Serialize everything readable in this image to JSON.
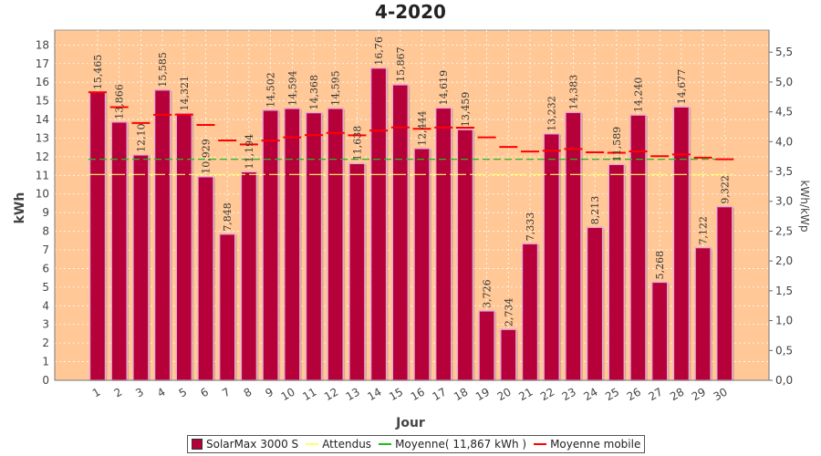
{
  "chart_data": {
    "type": "bar",
    "title": "4-2020",
    "xlabel": "Jour",
    "ylabel": "kWh",
    "y2label": "kWh/kWp",
    "categories": [
      "1",
      "2",
      "3",
      "4",
      "5",
      "6",
      "7",
      "8",
      "9",
      "10",
      "11",
      "12",
      "13",
      "14",
      "15",
      "16",
      "17",
      "18",
      "19",
      "20",
      "21",
      "22",
      "23",
      "24",
      "25",
      "26",
      "27",
      "28",
      "29",
      "30"
    ],
    "ylim": [
      0,
      18.8
    ],
    "yticks": [
      0,
      1,
      2,
      3,
      4,
      5,
      6,
      7,
      8,
      9,
      10,
      11,
      12,
      13,
      14,
      15,
      16,
      17,
      18
    ],
    "y2lim": [
      0,
      5.87
    ],
    "y2ticks": [
      "0,0",
      "0,5",
      "1,0",
      "1,5",
      "2,0",
      "2,5",
      "3,0",
      "3,5",
      "4,0",
      "4,5",
      "5,0",
      "5,5"
    ],
    "grid": true,
    "series": [
      {
        "name": "SolarMax 3000 S",
        "kind": "bar",
        "color": "#b5003a",
        "values": [
          15.465,
          13.866,
          12.1,
          15.585,
          14.321,
          10.929,
          7.848,
          11.194,
          14.502,
          14.594,
          14.368,
          14.595,
          11.638,
          16.76,
          15.867,
          12.444,
          14.619,
          13.459,
          3.726,
          2.734,
          7.333,
          13.232,
          14.383,
          8.213,
          11.589,
          14.24,
          5.268,
          14.677,
          7.122,
          9.322
        ],
        "labels": [
          "15,465",
          "13,866",
          "12,10",
          "15,585",
          "14,321",
          "10,929",
          "7,848",
          "11,194",
          "14,502",
          "14,594",
          "14,368",
          "14,595",
          "11,638",
          "16,76",
          "15,867",
          "12,444",
          "14,619",
          "13,459",
          "3,726",
          "2,734",
          "7,333",
          "13,232",
          "14,383",
          "8,213",
          "11,589",
          "14,240",
          "5,268",
          "14,677",
          "7,122",
          "9,322"
        ]
      },
      {
        "name": "Attendus",
        "kind": "line",
        "color": "#ffff66",
        "value": 11.05
      },
      {
        "name": "Moyenne( 11,867 kWh )",
        "kind": "line",
        "color": "#22bb22",
        "value": 11.867
      },
      {
        "name": "Moyenne mobile",
        "kind": "steps",
        "color": "#ff0000",
        "values": [
          15.465,
          14.666,
          13.81,
          14.254,
          14.267,
          13.711,
          12.873,
          12.663,
          12.867,
          13.04,
          13.161,
          13.277,
          13.151,
          13.409,
          13.573,
          13.502,
          13.568,
          13.562,
          13.044,
          12.528,
          12.281,
          12.325,
          12.416,
          12.241,
          12.215,
          12.291,
          12.031,
          12.125,
          11.952,
          11.867
        ]
      }
    ]
  }
}
